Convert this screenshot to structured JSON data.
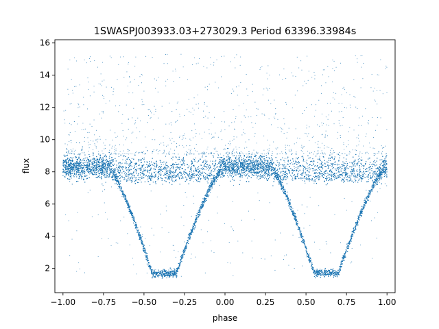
{
  "chart_data": {
    "type": "scatter",
    "title": "1SWASPJ003933.03+273029.3 Period 63396.33984s",
    "xlabel": "phase",
    "ylabel": "flux",
    "xlim": [
      -1.05,
      1.05
    ],
    "ylim": [
      0.5,
      16.2
    ],
    "x_ticks": [
      -1.0,
      -0.75,
      -0.5,
      -0.25,
      0.0,
      0.25,
      0.5,
      0.75,
      1.0
    ],
    "x_tick_labels": [
      "−1.00",
      "−0.75",
      "−0.50",
      "−0.25",
      "0.00",
      "0.25",
      "0.50",
      "0.75",
      "1.00"
    ],
    "y_ticks": [
      2,
      4,
      6,
      8,
      10,
      12,
      14,
      16
    ],
    "y_tick_labels": [
      "2",
      "4",
      "6",
      "8",
      "10",
      "12",
      "14",
      "16"
    ],
    "grid": false,
    "legend": "none",
    "marker_color": "#1f77b4",
    "light_curve": {
      "phase_range": [
        -1.0,
        1.0
      ],
      "baseline_flux": 8.3,
      "baseline_scatter": 0.35,
      "secondary_branch_flux": 7.7,
      "eclipses": [
        {
          "phase_center": -0.37,
          "ingress_phase": -0.7,
          "flat_start": -0.45,
          "flat_end": -0.3,
          "egress_phase": -0.03,
          "min_flux": 1.7
        },
        {
          "phase_center": 0.63,
          "ingress_phase": 0.3,
          "flat_start": 0.55,
          "flat_end": 0.7,
          "egress_phase": 0.97,
          "min_flux": 1.7
        }
      ],
      "outlier_flux_range": [
        1.5,
        15.3
      ]
    }
  }
}
